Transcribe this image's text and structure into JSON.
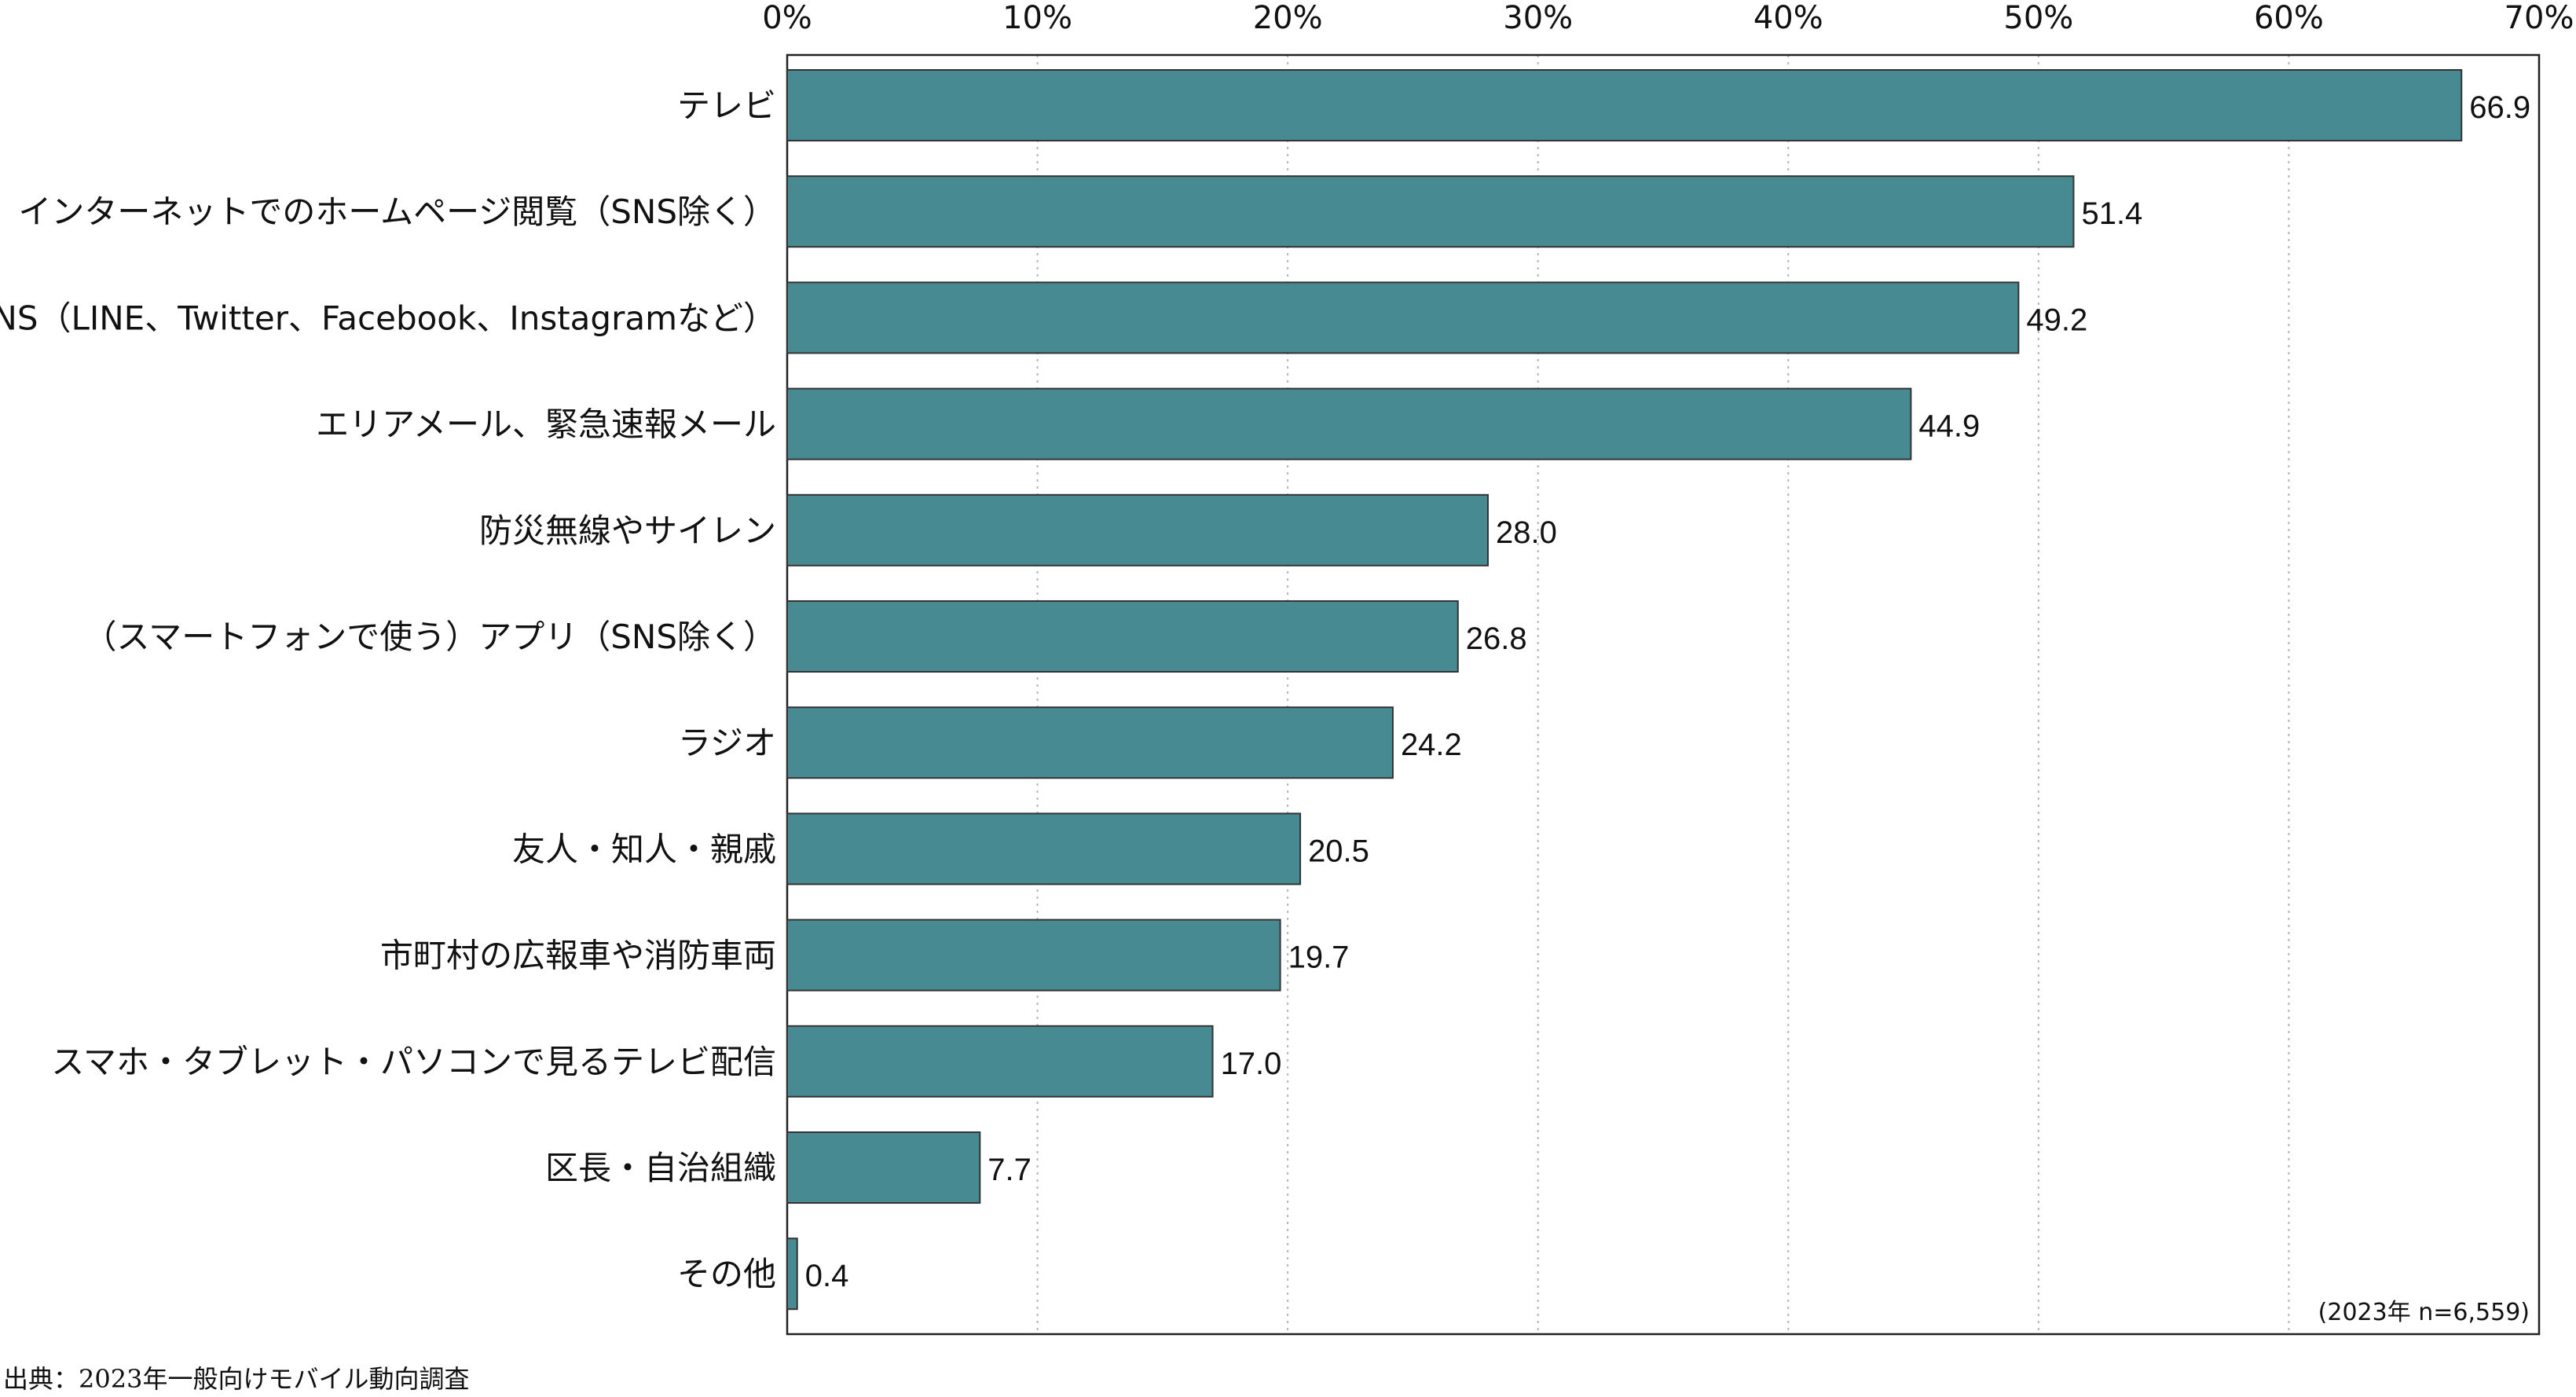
{
  "chart_data": {
    "type": "bar",
    "orientation": "horizontal",
    "categories": [
      "テレビ",
      "インターネットでのホームページ閲覧（SNS除く）",
      "SNS（LINE、Twitter、Facebook、Instagramなど）",
      "エリアメール、緊急速報メール",
      "防災無線やサイレン",
      "（スマートフォンで使う）アプリ（SNS除く）",
      "ラジオ",
      "友人・知人・親戚",
      "市町村の広報車や消防車両",
      "スマホ・タブレット・パソコンで見るテレビ配信",
      "区長・自治組織",
      "その他"
    ],
    "values": [
      66.9,
      51.4,
      49.2,
      44.9,
      28.0,
      26.8,
      24.2,
      20.5,
      19.7,
      17.0,
      7.7,
      0.4
    ],
    "value_labels": [
      "66.9",
      "51.4",
      "49.2",
      "44.9",
      "28.0",
      "26.8",
      "24.2",
      "20.5",
      "19.7",
      "17.0",
      "7.7",
      "0.4"
    ],
    "xlim": [
      0,
      70
    ],
    "x_ticks": [
      0,
      10,
      20,
      30,
      40,
      50,
      60,
      70
    ],
    "x_tick_labels": [
      "0%",
      "10%",
      "20%",
      "30%",
      "40%",
      "50%",
      "60%",
      "70%"
    ],
    "axis_position": "top",
    "grid": true,
    "grid_style": "dotted-vertical",
    "bar_color": "#478a91",
    "bar_edge_color": "#333333",
    "title": "",
    "xlabel": "",
    "ylabel": "",
    "note": "(2023年 n=6,559)",
    "source": "出典：2023年一般向けモバイル動向調査"
  }
}
